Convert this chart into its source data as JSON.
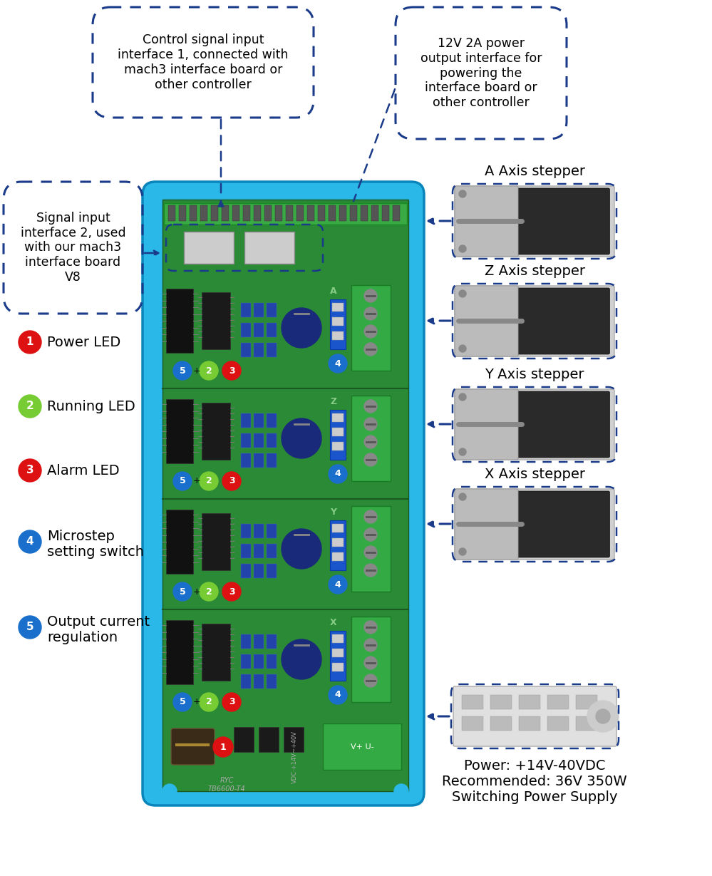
{
  "fig_width": 9.99,
  "fig_height": 12.29,
  "bg_color": "#ffffff",
  "board_color": "#2ab8e8",
  "pcb_color": "#2a8a35",
  "dashed_border_color": "#1a3a8a",
  "callout_top_left_text": "Control signal input\ninterface 1, connected with\nmach3 interface board or\nother controller",
  "callout_top_right_text": "12V 2A power\noutput interface for\npowering the\ninterface board or\nother controller",
  "callout_left_text": "Signal input\ninterface 2, used\nwith our mach3\ninterface board\nV8",
  "legend_items": [
    {
      "num": "1",
      "color": "#dd1111",
      "text": "Power LED"
    },
    {
      "num": "2",
      "color": "#77cc33",
      "text": "Running LED"
    },
    {
      "num": "3",
      "color": "#dd1111",
      "text": "Alarm LED"
    },
    {
      "num": "4",
      "color": "#1a6fcc",
      "text": "Microstep\nsetting switch"
    },
    {
      "num": "5",
      "color": "#1a6fcc",
      "text": "Output current\nregulation"
    }
  ],
  "stepper_labels": [
    "A Axis stepper",
    "Z Axis stepper",
    "Y Axis stepper",
    "X Axis stepper"
  ],
  "power_text": "Power: +14V-40VDC\nRecommended: 36V 350W\nSwitching Power Supply",
  "section_labels": [
    "A",
    "Z",
    "Y",
    "X"
  ],
  "callout_font_size": 12,
  "legend_font_size": 14,
  "label_font_size": 13
}
